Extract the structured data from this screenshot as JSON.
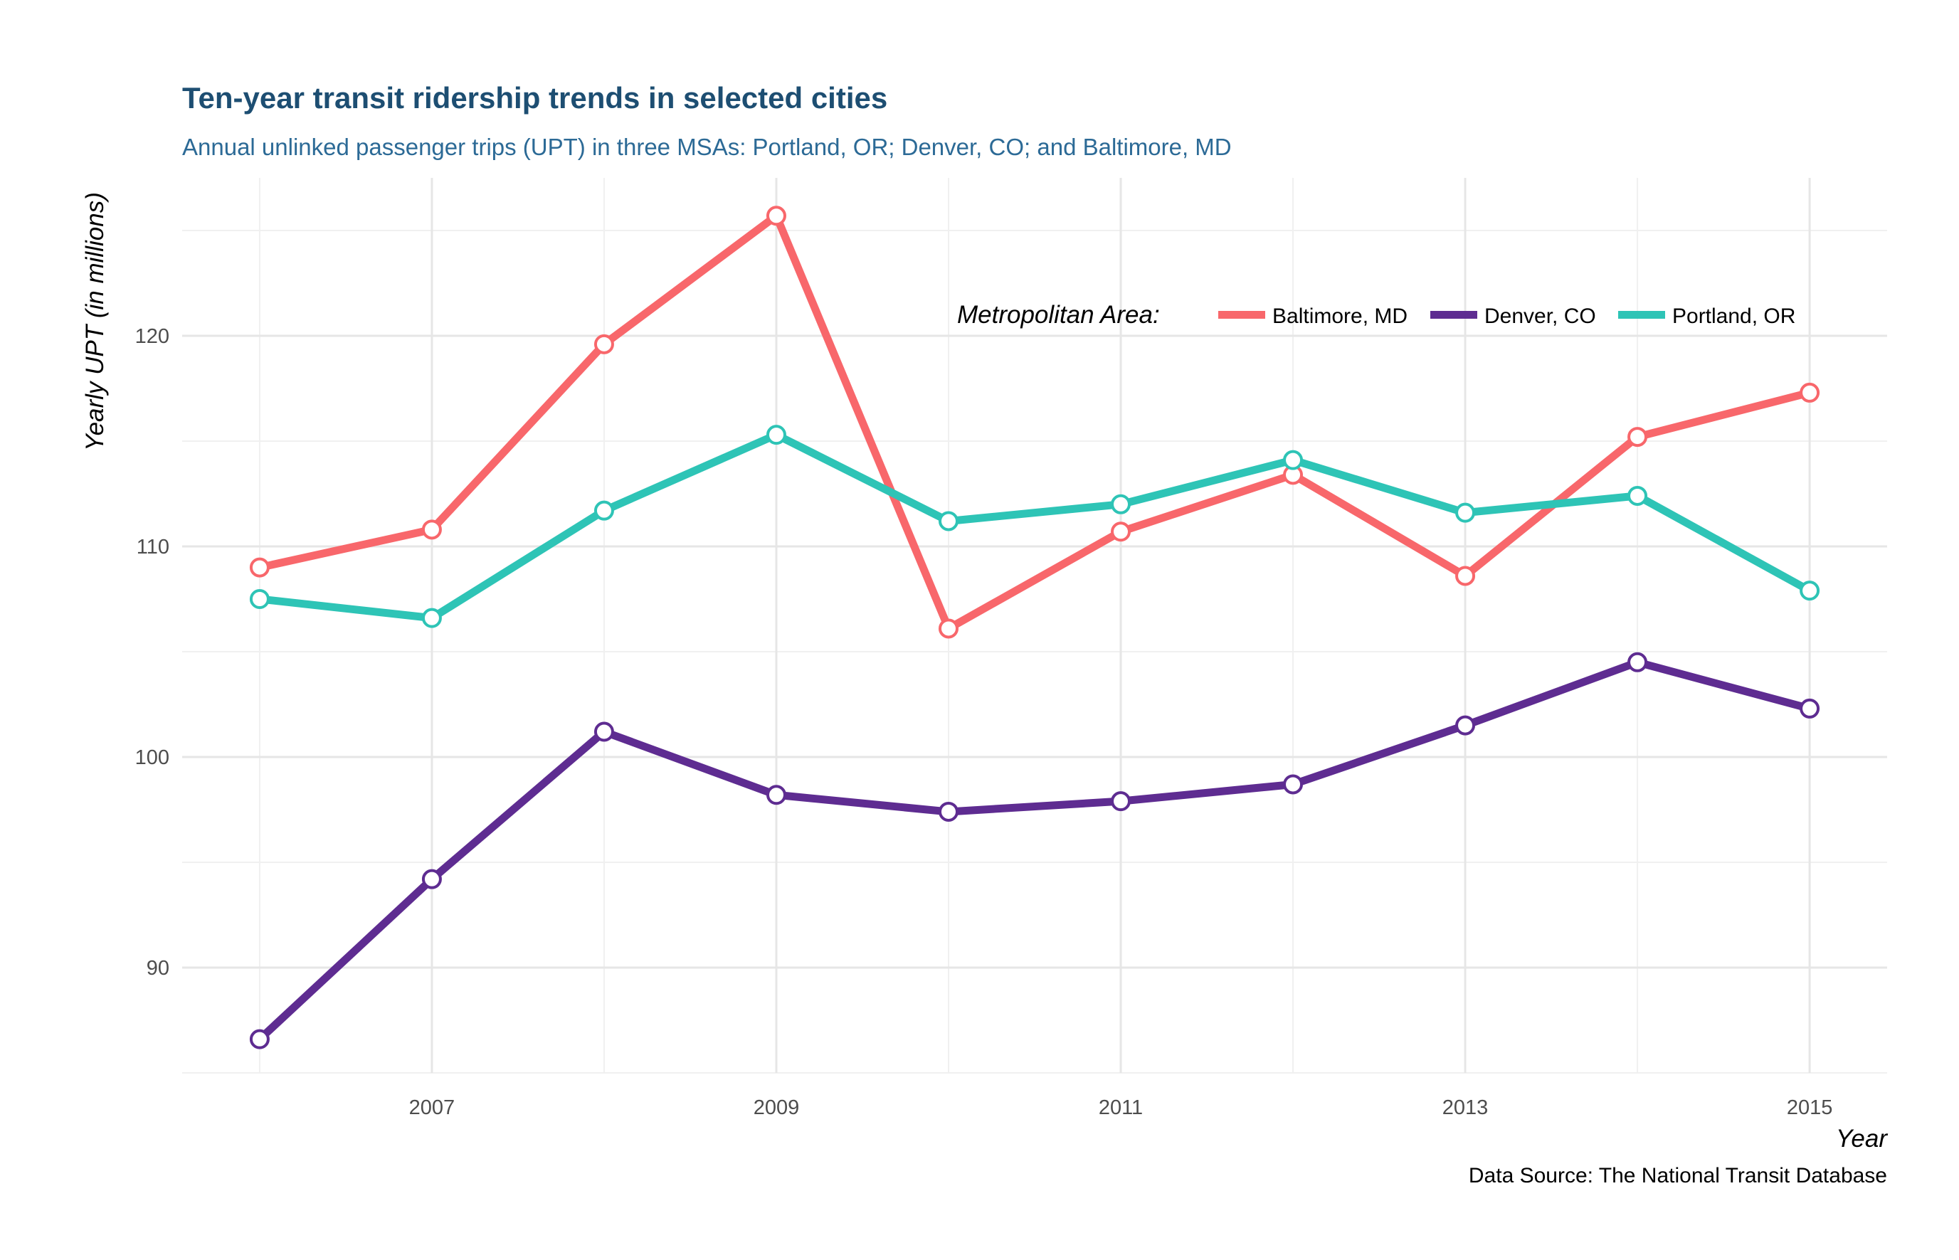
{
  "chart_data": {
    "type": "line",
    "title": "Ten-year transit ridership trends in selected cities",
    "subtitle": "Annual unlinked passenger trips (UPT) in three MSAs: Portland, OR; Denver, CO; and Baltimore, MD",
    "xlabel": "Year",
    "ylabel": "Yearly UPT (in millions)",
    "caption": "Data Source: The National Transit Database",
    "x": [
      2006,
      2007,
      2008,
      2009,
      2010,
      2011,
      2012,
      2013,
      2014,
      2015
    ],
    "xlim": [
      2005.55,
      2015.45
    ],
    "ylim": [
      85,
      127.5
    ],
    "x_ticks": [
      2007,
      2009,
      2011,
      2013,
      2015
    ],
    "x_tick_labels": [
      "2007",
      "2009",
      "2011",
      "2013",
      "2015"
    ],
    "y_ticks": [
      90,
      100,
      110,
      120
    ],
    "y_tick_labels": [
      "90",
      "100",
      "110",
      "120"
    ],
    "grid": true,
    "legend": {
      "title": "Metropolitan Area:",
      "position": "top-right inside"
    },
    "series": [
      {
        "name": "Baltimore, MD",
        "color": "#f8676b",
        "values": [
          109.0,
          110.8,
          119.6,
          125.7,
          106.1,
          110.7,
          113.4,
          108.6,
          115.2,
          117.3
        ]
      },
      {
        "name": "Denver, CO",
        "color": "#5e2c91",
        "values": [
          86.6,
          94.2,
          101.2,
          98.2,
          97.4,
          97.9,
          98.7,
          101.5,
          104.5,
          102.3
        ]
      },
      {
        "name": "Portland, OR",
        "color": "#2ec4b6",
        "values": [
          107.5,
          106.6,
          111.7,
          115.3,
          111.2,
          112.0,
          114.1,
          111.6,
          112.4,
          107.9
        ]
      }
    ]
  }
}
